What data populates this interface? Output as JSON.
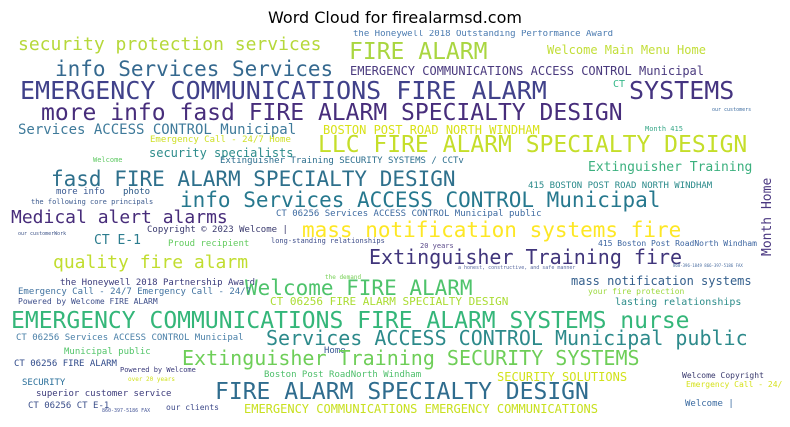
{
  "title": "Word Cloud for firealarmsd.com",
  "words": [
    {
      "text": "the Honeywell 2018 Outstanding Performance Award",
      "color": "#4b7bb0"
    },
    {
      "text": "security protection services",
      "color": "#b6d83a"
    },
    {
      "text": "FIRE ALARM",
      "color": "#a9d640"
    },
    {
      "text": "Welcome Main Menu Home",
      "color": "#c2de38"
    },
    {
      "text": "info Services Services",
      "color": "#35698f"
    },
    {
      "text": "EMERGENCY COMMUNICATIONS ACCESS CONTROL Municipal",
      "color": "#4a3a7e"
    },
    {
      "text": "EMERGENCY COMMUNICATIONS FIRE ALARM",
      "color": "#40418a"
    },
    {
      "text": "CT",
      "color": "#35b889"
    },
    {
      "text": "SYSTEMS",
      "color": "#453480"
    },
    {
      "text": "our customers",
      "color": "#3d6ca0"
    },
    {
      "text": "more info fasd FIRE ALARM SPECIALTY DESIGN",
      "color": "#472d7b"
    },
    {
      "text": "Month 415",
      "color": "#38a889"
    },
    {
      "text": "Services ACCESS CONTROL Municipal",
      "color": "#3e7a9a"
    },
    {
      "text": "BOSTON POST ROAD NORTH WINDHAM",
      "color": "#d8e219"
    },
    {
      "text": "Emergency Call - 24/7 Home",
      "color": "#cfe028"
    },
    {
      "text": "LLC FIRE ALARM SPECIALTY DESIGN",
      "color": "#c5de2a"
    },
    {
      "text": "security specialists",
      "color": "#2d8c8b"
    },
    {
      "text": "Welcome",
      "color": "#5ec962"
    },
    {
      "text": "Extinguisher Training SECURITY SYSTEMS / CCTv",
      "color": "#2d6f8e"
    },
    {
      "text": "Extinguisher Training",
      "color": "#3bb07e"
    },
    {
      "text": "fasd FIRE ALARM SPECIALTY DESIGN",
      "color": "#2e708c"
    },
    {
      "text": "Month Home",
      "color": "#4a3780"
    },
    {
      "text": "more info",
      "color": "#3a5a92"
    },
    {
      "text": "photo",
      "color": "#2a5886"
    },
    {
      "text": "415 BOSTON POST ROAD NORTH WINDHAM",
      "color": "#2a8a8a"
    },
    {
      "text": "the following core principals",
      "color": "#3c5a8e"
    },
    {
      "text": "info Services ACCESS CONTROL Municipal",
      "color": "#26788e"
    },
    {
      "text": "Medical alert alarms",
      "color": "#472c7a"
    },
    {
      "text": "CT 06256 Services ACCESS CONTROL Municipal public",
      "color": "#3d6aa0"
    },
    {
      "text": "our customerWork",
      "color": "#3b5186"
    },
    {
      "text": "Copyright © 2023 Welcome |",
      "color": "#3a3a6e"
    },
    {
      "text": "mass notification systems fire",
      "color": "#fde725"
    },
    {
      "text": "CT E-1",
      "color": "#2b7c8e"
    },
    {
      "text": "Proud recipient",
      "color": "#63cb5f"
    },
    {
      "text": "long-standing relationships",
      "color": "#3e4d8a"
    },
    {
      "text": "20 years",
      "color": "#5b4a8a"
    },
    {
      "text": "415 Boston Post RoadNorth Windham",
      "color": "#3b64a0"
    },
    {
      "text": "quality fire alarm",
      "color": "#c1dd2f"
    },
    {
      "text": "Extinguisher Training fire",
      "color": "#40357b"
    },
    {
      "text": "a honest, constructive, and safe manner",
      "color": "#5a6aa0"
    },
    {
      "text": "860-396-1849 866-397-5186 FAX",
      "color": "#4a6da0"
    },
    {
      "text": "the demand",
      "color": "#76d055"
    },
    {
      "text": "the Honeywell 2018 Partnership Award",
      "color": "#3a3a7a"
    },
    {
      "text": "Welcome FIRE ALARM",
      "color": "#4ec36b"
    },
    {
      "text": "mass notification systems",
      "color": "#35608d"
    },
    {
      "text": "Emergency Call - 24/7 Emergency Call - 24/7",
      "color": "#4273a0"
    },
    {
      "text": "Powered by Welcome FIRE ALARM",
      "color": "#3d4e8a"
    },
    {
      "text": "CT 06256 FIRE ALARM SPECIALTY DESIGN",
      "color": "#aadc32"
    },
    {
      "text": "your fire protection",
      "color": "#9bd93c"
    },
    {
      "text": "lasting relationships",
      "color": "#2c8d8a"
    },
    {
      "text": "EMERGENCY COMMUNICATIONS FIRE ALARM SYSTEMS nurse",
      "color": "#34b679"
    },
    {
      "text": "Services ACCESS CONTROL Municipal public",
      "color": "#2d8a8b"
    },
    {
      "text": "CT 06256 Services ACCESS CONTROL Municipal",
      "color": "#4a80a8"
    },
    {
      "text": "Municipal public",
      "color": "#52c569"
    },
    {
      "text": "Home",
      "color": "#3a5a96"
    },
    {
      "text": "Extinguisher Training SECURITY SYSTEMS",
      "color": "#6ece58"
    },
    {
      "text": "CT 06256 FIRE ALARM",
      "color": "#2f4a8a"
    },
    {
      "text": "Powered by Welcome",
      "color": "#3a3a7a"
    },
    {
      "text": "Boston Post RoadNorth Windham",
      "color": "#4dbf6a"
    },
    {
      "text": "SECURITY SOLUTIONS",
      "color": "#d2e21b"
    },
    {
      "text": "Welcome Copyright",
      "color": "#3a3a6e"
    },
    {
      "text": "Emergency Call - 24/7",
      "color": "#d6e21e"
    },
    {
      "text": "SECURITY",
      "color": "#2a6f9a"
    },
    {
      "text": "over 20 years",
      "color": "#d0e11c"
    },
    {
      "text": "FIRE ALARM SPECIALTY DESIGN",
      "color": "#2f6c8e"
    },
    {
      "text": "superior customer service",
      "color": "#3b3a7a"
    },
    {
      "text": "CT 06256 CT E-1",
      "color": "#3a4e8a"
    },
    {
      "text": "860-397-5186 FAX",
      "color": "#4a5a9a"
    },
    {
      "text": "our clients",
      "color": "#3e4a8a"
    },
    {
      "text": "EMERGENCY COMMUNICATIONS EMERGENCY COMMUNICATIONS",
      "color": "#c8e020"
    },
    {
      "text": "Welcome |",
      "color": "#3a6aa0"
    }
  ]
}
